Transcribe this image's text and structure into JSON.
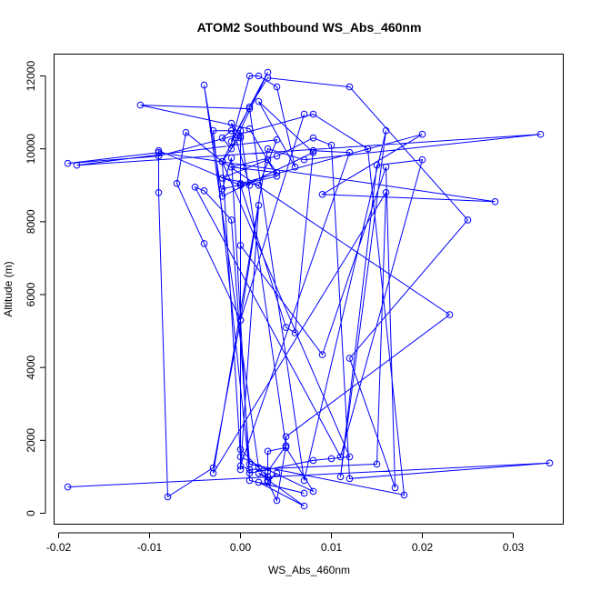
{
  "chart_data": {
    "type": "line",
    "title": "ATOM2 Southbound WS_Abs_460nm",
    "xlabel": "WS_Abs_460nm",
    "ylabel": "Altitude (m)",
    "xlim": [
      -0.0205,
      0.0355
    ],
    "ylim": [
      -300,
      12600
    ],
    "x_ticks": [
      -0.02,
      -0.01,
      0.0,
      0.01,
      0.02,
      0.03
    ],
    "x_tick_labels": [
      "-0.02",
      "-0.01",
      "0.00",
      "0.01",
      "0.02",
      "0.03"
    ],
    "y_ticks": [
      0,
      2000,
      4000,
      6000,
      8000,
      10000,
      12000
    ],
    "y_tick_labels": [
      "0",
      "2000",
      "4000",
      "6000",
      "8000",
      "10000",
      "12000"
    ],
    "grid": false,
    "legend": "none",
    "series": [
      {
        "color": "#0000ff",
        "marker": "open-circle",
        "line": true,
        "x": [
          -0.019,
          0.034,
          0.012,
          0.01,
          0.008,
          0.004,
          -0.001,
          0.004,
          0.003,
          -0.002,
          0.002,
          0.004,
          -0.018,
          0.033,
          0.007,
          0.003,
          -0.003,
          0.016,
          0.015,
          0.001,
          0.0,
          0.012,
          0.008,
          0.006,
          0.005,
          0.0,
          0.0,
          0.003,
          0.002,
          0.007,
          0.002,
          0.007,
          0.001,
          -0.001,
          -0.002,
          0.004,
          0.001,
          -0.011,
          0.001,
          0.007,
          0.016,
          0.011,
          0.015,
          0.02,
          0.011,
          -0.005,
          -0.004,
          -0.001,
          0.001,
          0.018,
          0.014,
          0.008,
          -0.009,
          -0.019,
          -0.009,
          0.028,
          0.009,
          0.02,
          0.0,
          0.0,
          0.009,
          0.016,
          0.017,
          0.012,
          0.025,
          0.012,
          0.003,
          0.001,
          -0.002,
          -0.006,
          -0.007,
          -0.004,
          0.0,
          -0.003,
          -0.008,
          -0.009,
          -0.009,
          0.0,
          0.001,
          -0.001,
          0.0,
          -0.002,
          0.012,
          0.01,
          0.008,
          0.001,
          -0.003,
          0.0,
          0.005,
          0.005,
          0.023,
          -0.002,
          0.0,
          0.008,
          0.005,
          0.003,
          0.003,
          0.003,
          0.003,
          0.005,
          0.004,
          0.003,
          0.004,
          0.003,
          0.003,
          0.002,
          -0.004,
          -0.002,
          0.008,
          0.002,
          0.006,
          0.004,
          0.002,
          0.001,
          -0.001,
          0.003,
          -0.001,
          -0.002,
          -0.001,
          0.0,
          0.0,
          0.002,
          0.0,
          0.007
        ],
        "y": [
          720,
          1380,
          950,
          10100,
          10300,
          9800,
          9500,
          9350,
          9700,
          9200,
          9000,
          10250,
          9550,
          10400,
          9700,
          10000,
          1100,
          8800,
          1350,
          1200,
          1300,
          9900,
          9950,
          4950,
          5100,
          9000,
          1750,
          1000,
          1100,
          200,
          850,
          550,
          900,
          9750,
          8900,
          9250,
          10550,
          11200,
          11100,
          900,
          10500,
          1000,
          9550,
          9700,
          1550,
          8950,
          8850,
          8050,
          1350,
          500,
          10000,
          10950,
          9800,
          9600,
          9900,
          8550,
          8750,
          10400,
          9050,
          7350,
          4350,
          9500,
          700,
          4250,
          8050,
          11700,
          11950,
          11150,
          9650,
          10450,
          9050,
          7400,
          5300,
          1250,
          450,
          8800,
          9950,
          9000,
          9000,
          10700,
          10350,
          9650,
          1550,
          1500,
          1450,
          1100,
          10500,
          10500,
          1850,
          2100,
          5450,
          9650,
          1550,
          600,
          1800,
          1700,
          900,
          850,
          1150,
          1850,
          350,
          850,
          1100,
          900,
          1000,
          1250,
          11750,
          8700,
          9900,
          11300,
          9500,
          11700,
          12000,
          12000,
          10200,
          12100,
          10000,
          10300,
          10500,
          10300,
          1200,
          8450,
          5300,
          10950
        ]
      }
    ]
  }
}
